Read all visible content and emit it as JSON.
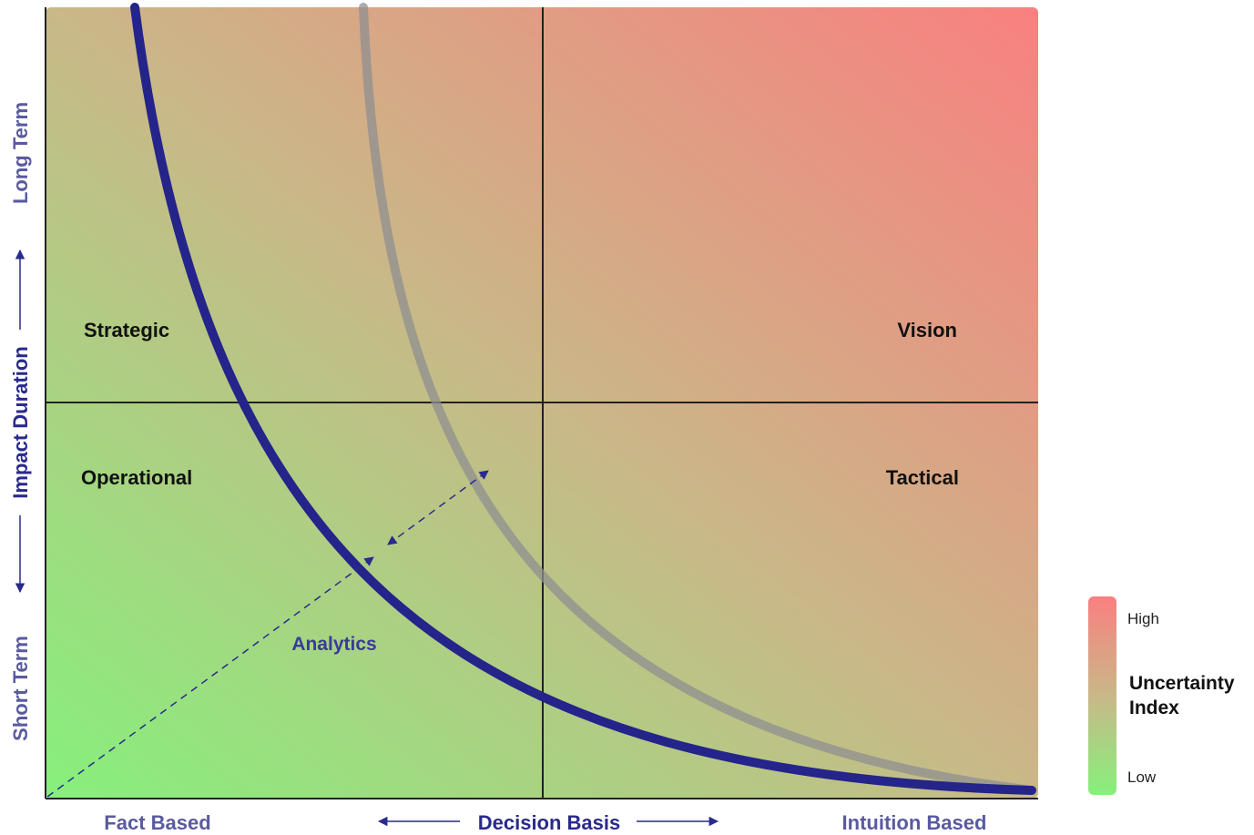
{
  "quadrants": {
    "top_left": "Strategic",
    "top_right": "Vision",
    "bottom_left": "Operational",
    "bottom_right": "Tactical"
  },
  "x_axis": {
    "left": "Fact Based",
    "center": "Decision Basis",
    "right": "Intuition Based"
  },
  "y_axis": {
    "top": "Long Term",
    "center": "Impact Duration",
    "bottom": "Short Term"
  },
  "analytics_label": "Analytics",
  "legend": {
    "high": "High",
    "title_line1": "Uncertainty",
    "title_line2": "Index",
    "low": "Low"
  },
  "colors": {
    "low": "#86f07c",
    "mid": "#c9b888",
    "high": "#f98080",
    "primary_curve": "#24248a",
    "secondary_curve": "#8f8f90"
  }
}
